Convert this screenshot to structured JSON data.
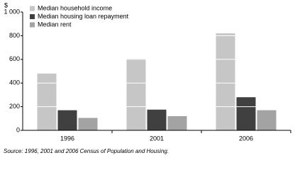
{
  "chart_data": {
    "type": "bar",
    "y_label": "$",
    "categories": [
      "1996",
      "2001",
      "2006"
    ],
    "series": [
      {
        "name": "Median household income",
        "color": "#c6c6c6",
        "values": [
          480,
          605,
          820
        ]
      },
      {
        "name": "Median housing loan repayment",
        "color": "#404040",
        "values": [
          170,
          175,
          280
        ]
      },
      {
        "name": "Median rent",
        "color": "#a3a3a3",
        "values": [
          105,
          120,
          170
        ]
      }
    ],
    "ylim": [
      0,
      1000
    ],
    "yticks": [
      0,
      200,
      400,
      600,
      800,
      {
        "value": 1000,
        "label": "1 000"
      }
    ],
    "grid": true,
    "legend": "top-left",
    "source": "Source: 1996, 2001 and 2006 Census of Population and Housing."
  }
}
